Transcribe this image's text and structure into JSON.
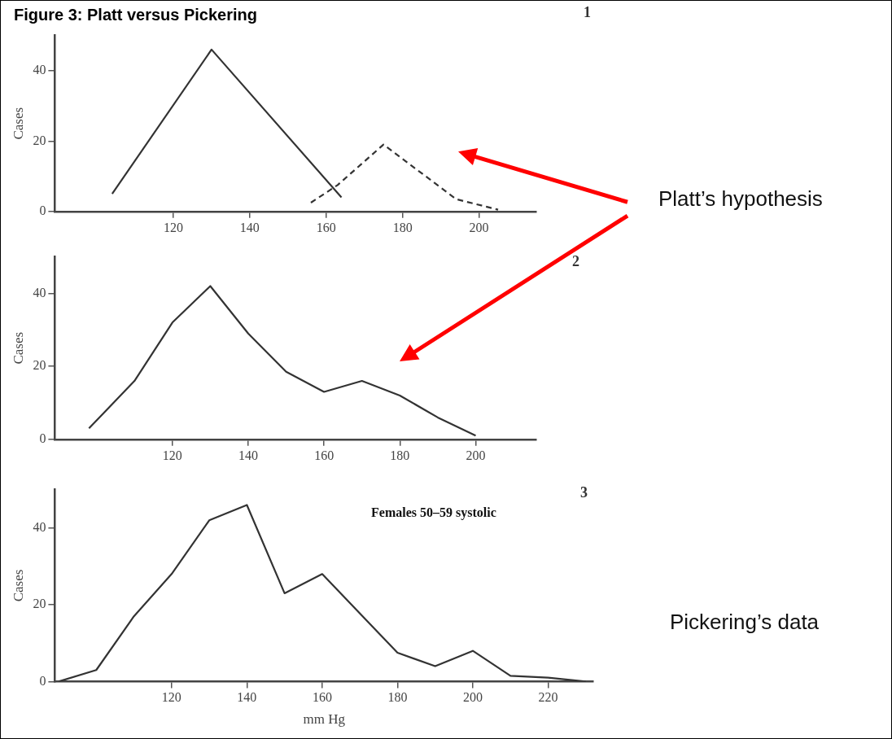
{
  "chart_data": [
    {
      "type": "line",
      "title": "Figure 3: Platt versus Pickering",
      "ylabel": "Cases",
      "annotations": [
        "1",
        "Platt’s hypothesis"
      ],
      "xlim": [
        89,
        215
      ],
      "xticks": [
        120,
        140,
        160,
        180,
        200
      ],
      "ylim": [
        0,
        50
      ],
      "yticks": [
        0,
        20,
        40
      ],
      "marker": "none",
      "legend": false,
      "grid": false,
      "series": [
        {
          "color": "#333333",
          "line_style": "solid",
          "x": [
            104,
            130,
            164
          ],
          "values": [
            5,
            46,
            4
          ]
        },
        {
          "color": "#333333",
          "line_style": "dashed",
          "x": [
            156,
            163,
            175,
            194,
            205
          ],
          "values": [
            2.5,
            7.5,
            19,
            3.5,
            0.5
          ]
        }
      ]
    },
    {
      "type": "line",
      "ylabel": "Cases",
      "annotations": [
        "2"
      ],
      "xlim": [
        89,
        216
      ],
      "xticks": [
        120,
        140,
        160,
        180,
        200
      ],
      "ylim": [
        0,
        50
      ],
      "yticks": [
        0,
        20,
        40
      ],
      "marker": "none",
      "legend": false,
      "grid": false,
      "series": [
        {
          "color": "#333333",
          "line_style": "solid",
          "x": [
            98,
            110,
            120,
            130,
            140,
            150,
            160,
            170,
            180,
            190,
            200
          ],
          "values": [
            3,
            16,
            32,
            42,
            29,
            18.5,
            13,
            16,
            12,
            6,
            1
          ]
        }
      ]
    },
    {
      "type": "line",
      "xlabel": "mm Hg",
      "ylabel": "Cases",
      "annotations": [
        "3",
        "Females 50–59 systolic",
        "Pickering’s data"
      ],
      "xlim": [
        89,
        232
      ],
      "xticks": [
        120,
        140,
        160,
        180,
        200,
        220
      ],
      "ylim": [
        0,
        50
      ],
      "yticks": [
        0,
        20,
        40
      ],
      "marker": "none",
      "legend": false,
      "grid": false,
      "series": [
        {
          "color": "#333333",
          "line_style": "solid",
          "x": [
            90,
            100,
            110,
            120,
            130,
            140,
            150,
            160,
            180,
            190,
            200,
            210,
            220,
            230
          ],
          "values": [
            0,
            3,
            17,
            28,
            42,
            46,
            23,
            28,
            7.5,
            4,
            8,
            1.5,
            1,
            0
          ]
        }
      ]
    }
  ]
}
